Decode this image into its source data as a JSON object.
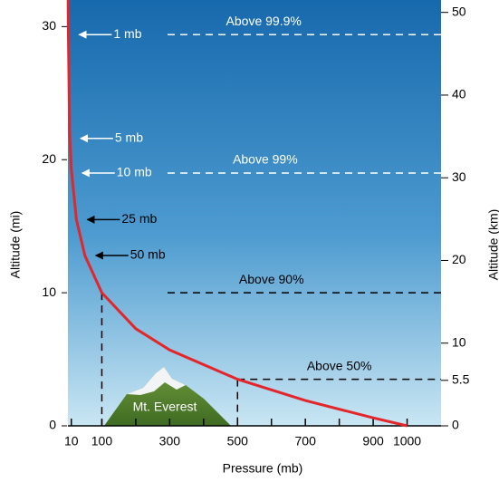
{
  "chart_data": {
    "type": "line",
    "x_label": "Pressure (mb)",
    "y_label": "Altitude (mi)",
    "y2_label": "Altitude (km)",
    "x": [
      0.5,
      1,
      5,
      10,
      25,
      50,
      100,
      200,
      300,
      500,
      700,
      900,
      1000
    ],
    "series": [
      {
        "color": "#e3262b",
        "values": [
          32,
          30,
          22,
          19.3,
          15.5,
          12.8,
          10,
          7.3,
          5.7,
          3.5,
          1.9,
          0.6,
          0
        ]
      }
    ],
    "xlim": [
      0,
      1100
    ],
    "xticks": [
      10,
      100,
      300,
      500,
      700,
      900,
      1000
    ],
    "xminor": [
      200,
      400,
      600,
      800
    ],
    "ylim": [
      0,
      32
    ],
    "yticks": [
      0,
      10,
      20,
      30
    ],
    "y2lim": [
      0,
      51.5
    ],
    "y2ticks": [
      0,
      5.5,
      10,
      20,
      30,
      40,
      50
    ],
    "pressure_labels": [
      {
        "text": "1 mb",
        "pressure": 1,
        "altitude": 29.4
      },
      {
        "text": "5 mb",
        "pressure": 5,
        "altitude": 21.6
      },
      {
        "text": "10 mb",
        "pressure": 10,
        "altitude": 19
      },
      {
        "text": "25 mb",
        "pressure": 25,
        "altitude": 15.5
      },
      {
        "text": "50 mb",
        "pressure": 50,
        "altitude": 12.8
      }
    ],
    "levels": [
      {
        "text": "Above 99.9%",
        "pressure": 1,
        "altitude": 29.4
      },
      {
        "text": "Above 99%",
        "pressure": 10,
        "altitude": 19
      },
      {
        "text": "Above 90%",
        "pressure": 100,
        "altitude": 10
      },
      {
        "text": "Above 50%",
        "pressure": 500,
        "altitude": 3.5
      }
    ],
    "landmark": "Mt. Everest"
  }
}
